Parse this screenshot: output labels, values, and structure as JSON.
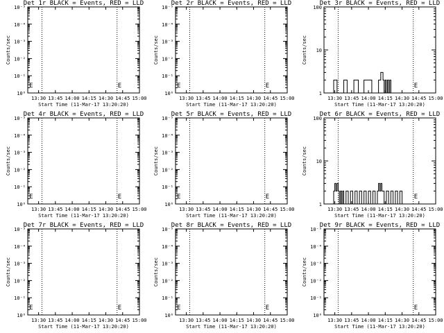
{
  "figure": {
    "background": "#ffffff",
    "axis_color": "#000000",
    "trace_color": "#000000"
  },
  "x_ticks": [
    "13:30",
    "13:45",
    "14:00",
    "14:15",
    "14:30",
    "14:45",
    "15:00"
  ],
  "x_axis_label": "Start Time (11-Mar-17 13:20:20)",
  "y_axis_label": "Counts/sec",
  "log_tick_labels": {
    "log_small": [
      "10⁰",
      "10⁻¹",
      "10⁻²",
      "10⁻³",
      "10⁻⁴",
      "10⁻⁵"
    ],
    "log_decade": [
      "1",
      "10",
      "100"
    ]
  },
  "chart_data": [
    {
      "type": "line",
      "title": "Det 1r BLACK = Events, RED = LLD",
      "y_scale": "log",
      "ylim": [
        1,
        100000
      ],
      "xlim": [
        "13:20:20",
        "15:00"
      ],
      "vlines": [
        "13:33",
        "14:40"
      ],
      "markers": [
        {
          "label": "E",
          "x": "13:21"
        },
        {
          "label": "E",
          "x": "14:40"
        }
      ],
      "series": []
    },
    {
      "type": "line",
      "title": "Det 2r BLACK = Events, RED = LLD",
      "y_scale": "log",
      "ylim": [
        1,
        100000
      ],
      "xlim": [
        "13:20:20",
        "15:00"
      ],
      "vlines": [
        "13:33",
        "14:40"
      ],
      "markers": [
        {
          "label": "E",
          "x": "13:21"
        },
        {
          "label": "E",
          "x": "14:40"
        }
      ],
      "series": []
    },
    {
      "type": "line",
      "title": "Det 3r BLACK = Events, RED = LLD",
      "y_scale": "log",
      "ylim": [
        1,
        100
      ],
      "xlim": [
        "13:20:20",
        "15:00"
      ],
      "vlines": [
        "13:33",
        "14:40"
      ],
      "markers": [
        {
          "label": "E",
          "x": "14:40"
        }
      ],
      "series": [
        {
          "x": [
            "13:20",
            "13:28",
            "13:29",
            "13:31",
            "13:32",
            "13:37",
            "13:38",
            "13:40",
            "13:41",
            "13:46",
            "13:47",
            "13:50",
            "13:51",
            "13:55",
            "13:56",
            "14:02",
            "14:03",
            "14:08",
            "14:09",
            "14:10",
            "14:11",
            "14:12",
            "14:13",
            "14:14",
            "14:15",
            "14:16",
            "14:17",
            "14:18",
            "14:19",
            "14:20",
            "14:21",
            "15:00"
          ],
          "y": [
            1,
            1,
            2,
            2,
            1,
            1,
            2,
            2,
            1,
            1,
            2,
            2,
            1,
            1,
            2,
            2,
            1,
            1,
            2,
            2,
            3,
            3,
            2,
            1,
            2,
            1,
            2,
            1,
            2,
            1,
            1,
            1
          ]
        }
      ]
    },
    {
      "type": "line",
      "title": "Det 4r BLACK = Events, RED = LLD",
      "y_scale": "log",
      "ylim": [
        1,
        100000
      ],
      "xlim": [
        "13:20:20",
        "15:00"
      ],
      "vlines": [
        "13:33",
        "14:40"
      ],
      "markers": [
        {
          "label": "E",
          "x": "13:21"
        },
        {
          "label": "E",
          "x": "14:40"
        }
      ],
      "series": []
    },
    {
      "type": "line",
      "title": "Det 5r BLACK = Events, RED = LLD",
      "y_scale": "log",
      "ylim": [
        1,
        100000
      ],
      "xlim": [
        "13:20:20",
        "15:00"
      ],
      "vlines": [
        "13:33",
        "14:40"
      ],
      "markers": [
        {
          "label": "E",
          "x": "13:21"
        },
        {
          "label": "E",
          "x": "14:40"
        }
      ],
      "series": []
    },
    {
      "type": "line",
      "title": "Det 6r BLACK = Events, RED = LLD",
      "y_scale": "log",
      "ylim": [
        1,
        100
      ],
      "xlim": [
        "13:20:20",
        "15:00"
      ],
      "vlines": [
        "13:33",
        "14:40"
      ],
      "markers": [
        {
          "label": "E",
          "x": "14:40"
        }
      ],
      "series": [
        {
          "x": [
            "13:20",
            "13:28",
            "13:29",
            "13:30",
            "13:31",
            "13:32",
            "13:33",
            "13:34",
            "13:35",
            "13:36",
            "13:37",
            "13:38",
            "13:40",
            "13:42",
            "13:44",
            "13:46",
            "13:48",
            "13:50",
            "13:52",
            "13:54",
            "13:56",
            "13:58",
            "14:00",
            "14:02",
            "14:04",
            "14:06",
            "14:08",
            "14:09",
            "14:10",
            "14:11",
            "14:12",
            "14:14",
            "14:16",
            "14:18",
            "14:20",
            "14:22",
            "14:24",
            "14:26",
            "14:28",
            "14:30",
            "14:31",
            "15:00"
          ],
          "y": [
            1,
            1,
            2,
            3,
            2,
            3,
            2,
            1,
            2,
            1,
            2,
            1,
            2,
            1,
            2,
            1,
            2,
            1,
            2,
            1,
            2,
            1,
            2,
            1,
            2,
            1,
            2,
            3,
            2,
            3,
            2,
            1,
            2,
            1,
            2,
            1,
            2,
            1,
            2,
            1,
            1,
            1
          ]
        }
      ]
    },
    {
      "type": "line",
      "title": "Det 7r BLACK = Events, RED = LLD",
      "y_scale": "log",
      "ylim": [
        1,
        100000
      ],
      "xlim": [
        "13:20:20",
        "15:00"
      ],
      "vlines": [
        "13:33",
        "14:40"
      ],
      "markers": [
        {
          "label": "E",
          "x": "13:21"
        },
        {
          "label": "E",
          "x": "14:40"
        }
      ],
      "series": []
    },
    {
      "type": "line",
      "title": "Det 8r BLACK = Events, RED = LLD",
      "y_scale": "log",
      "ylim": [
        1,
        100000
      ],
      "xlim": [
        "13:20:20",
        "15:00"
      ],
      "vlines": [
        "13:33",
        "14:40"
      ],
      "markers": [
        {
          "label": "E",
          "x": "13:21"
        },
        {
          "label": "E",
          "x": "14:40"
        }
      ],
      "series": []
    },
    {
      "type": "line",
      "title": "Det 9r BLACK = Events, RED = LLD",
      "y_scale": "log",
      "ylim": [
        1,
        100000
      ],
      "xlim": [
        "13:20:20",
        "15:00"
      ],
      "vlines": [
        "13:33",
        "14:40"
      ],
      "markers": [
        {
          "label": "E",
          "x": "14:40"
        }
      ],
      "series": []
    }
  ]
}
